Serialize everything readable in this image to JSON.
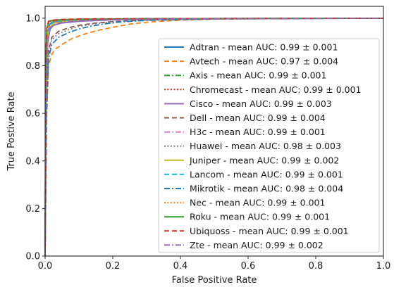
{
  "chart_data": {
    "type": "line",
    "title": "",
    "xlabel": "False Positive Rate",
    "ylabel": "True Postive Rate",
    "xlim": [
      0.0,
      1.0
    ],
    "ylim": [
      0.0,
      1.05
    ],
    "x_ticks": [
      "0.0",
      "0.2",
      "0.4",
      "0.6",
      "0.8",
      "1.0"
    ],
    "y_ticks": [
      "0.0",
      "0.2",
      "0.4",
      "0.6",
      "0.8",
      "1.0"
    ],
    "grid": false,
    "legend_position": "lower-right",
    "series": [
      {
        "name": "Adtran - mean AUC: 0.99 ± 0.001",
        "color": "#1f77b4",
        "dash": "solid",
        "x": [
          0,
          0.002,
          0.006,
          0.012,
          0.02,
          0.05,
          0.1,
          0.2,
          0.4,
          0.7,
          1.0
        ],
        "y": [
          0,
          0.55,
          0.9,
          0.97,
          0.985,
          0.99,
          0.993,
          0.996,
          0.998,
          0.999,
          1.0
        ]
      },
      {
        "name": "Avtech - mean AUC: 0.97 ± 0.004",
        "color": "#ff7f0e",
        "dash": "dashed",
        "x": [
          0,
          0.005,
          0.01,
          0.02,
          0.03,
          0.05,
          0.08,
          0.12,
          0.16,
          0.2,
          0.25,
          0.3,
          0.35,
          0.4,
          0.5,
          0.7,
          1.0
        ],
        "y": [
          0,
          0.6,
          0.8,
          0.85,
          0.87,
          0.89,
          0.915,
          0.935,
          0.95,
          0.962,
          0.975,
          0.983,
          0.988,
          0.992,
          0.996,
          0.999,
          1.0
        ]
      },
      {
        "name": "Axis - mean AUC: 0.99 ± 0.001",
        "color": "#2ca02c",
        "dash": "dashdot",
        "x": [
          0,
          0.003,
          0.008,
          0.015,
          0.03,
          0.06,
          0.12,
          0.25,
          0.5,
          1.0
        ],
        "y": [
          0,
          0.7,
          0.94,
          0.975,
          0.985,
          0.99,
          0.994,
          0.997,
          0.999,
          1.0
        ]
      },
      {
        "name": "Chromecast - mean AUC: 0.99 ± 0.001",
        "color": "#d62728",
        "dash": "dotted",
        "x": [
          0,
          0.002,
          0.005,
          0.01,
          0.02,
          0.05,
          0.1,
          0.3,
          0.6,
          1.0
        ],
        "y": [
          0,
          0.8,
          0.95,
          0.985,
          0.99,
          0.993,
          0.995,
          0.997,
          0.999,
          1.0
        ]
      },
      {
        "name": "Cisco - mean AUC: 0.99 ± 0.003",
        "color": "#9467bd",
        "dash": "solid",
        "x": [
          0,
          0.003,
          0.008,
          0.015,
          0.025,
          0.05,
          0.1,
          0.2,
          0.4,
          1.0
        ],
        "y": [
          0,
          0.65,
          0.9,
          0.955,
          0.97,
          0.98,
          0.987,
          0.993,
          0.997,
          1.0
        ]
      },
      {
        "name": "Dell - mean AUC: 0.99 ± 0.004",
        "color": "#8c564b",
        "dash": "dashed",
        "x": [
          0,
          0.004,
          0.01,
          0.02,
          0.04,
          0.07,
          0.1,
          0.15,
          0.2,
          0.3,
          0.5,
          1.0
        ],
        "y": [
          0,
          0.6,
          0.86,
          0.92,
          0.945,
          0.96,
          0.97,
          0.98,
          0.986,
          0.993,
          0.998,
          1.0
        ]
      },
      {
        "name": "H3c - mean AUC: 0.99 ± 0.001",
        "color": "#e377c2",
        "dash": "dashdot",
        "x": [
          0,
          0.003,
          0.007,
          0.015,
          0.03,
          0.06,
          0.12,
          0.3,
          0.6,
          1.0
        ],
        "y": [
          0,
          0.72,
          0.93,
          0.97,
          0.983,
          0.99,
          0.994,
          0.997,
          0.999,
          1.0
        ]
      },
      {
        "name": "Huawei - mean AUC: 0.98 ± 0.003",
        "color": "#7f7f7f",
        "dash": "dotted",
        "x": [
          0,
          0.004,
          0.01,
          0.02,
          0.04,
          0.07,
          0.1,
          0.15,
          0.2,
          0.3,
          0.5,
          1.0
        ],
        "y": [
          0,
          0.58,
          0.84,
          0.91,
          0.935,
          0.952,
          0.965,
          0.977,
          0.985,
          0.992,
          0.997,
          1.0
        ]
      },
      {
        "name": "Juniper - mean AUC: 0.99 ± 0.002",
        "color": "#bcbd22",
        "dash": "solid",
        "x": [
          0,
          0.003,
          0.007,
          0.015,
          0.03,
          0.06,
          0.12,
          0.25,
          0.5,
          1.0
        ],
        "y": [
          0,
          0.68,
          0.92,
          0.965,
          0.98,
          0.988,
          0.993,
          0.997,
          0.999,
          1.0
        ]
      },
      {
        "name": "Lancom - mean AUC: 0.99 ± 0.001",
        "color": "#17becf",
        "dash": "dashed",
        "x": [
          0,
          0.003,
          0.007,
          0.015,
          0.03,
          0.06,
          0.12,
          0.3,
          0.6,
          1.0
        ],
        "y": [
          0,
          0.75,
          0.94,
          0.975,
          0.986,
          0.991,
          0.995,
          0.998,
          0.999,
          1.0
        ]
      },
      {
        "name": "Mikrotik - mean AUC: 0.98 ± 0.004",
        "color": "#1f77b4",
        "dash": "dashdot",
        "x": [
          0,
          0.004,
          0.01,
          0.02,
          0.04,
          0.07,
          0.1,
          0.14,
          0.18,
          0.22,
          0.3,
          0.5,
          1.0
        ],
        "y": [
          0,
          0.6,
          0.83,
          0.89,
          0.92,
          0.94,
          0.955,
          0.968,
          0.977,
          0.984,
          0.991,
          0.997,
          1.0
        ]
      },
      {
        "name": "Nec - mean AUC: 0.99 ± 0.001",
        "color": "#ff7f0e",
        "dash": "dotted",
        "x": [
          0,
          0.002,
          0.006,
          0.012,
          0.025,
          0.05,
          0.1,
          0.3,
          0.6,
          1.0
        ],
        "y": [
          0,
          0.78,
          0.95,
          0.98,
          0.988,
          0.992,
          0.995,
          0.998,
          0.999,
          1.0
        ]
      },
      {
        "name": "Roku - mean AUC: 0.99 ± 0.001",
        "color": "#2ca02c",
        "dash": "solid",
        "x": [
          0,
          0.002,
          0.005,
          0.01,
          0.02,
          0.05,
          0.1,
          0.3,
          0.6,
          1.0
        ],
        "y": [
          0,
          0.8,
          0.955,
          0.985,
          0.991,
          0.994,
          0.996,
          0.998,
          0.999,
          1.0
        ]
      },
      {
        "name": "Ubiquoss - mean AUC: 0.99 ± 0.001",
        "color": "#d62728",
        "dash": "dashed",
        "x": [
          0,
          0.002,
          0.005,
          0.01,
          0.02,
          0.05,
          0.1,
          0.3,
          0.6,
          1.0
        ],
        "y": [
          0,
          0.82,
          0.96,
          0.987,
          0.992,
          0.995,
          0.997,
          0.998,
          0.999,
          1.0
        ]
      },
      {
        "name": "Zte - mean AUC: 0.99 ± 0.002",
        "color": "#9467bd",
        "dash": "dashdot",
        "x": [
          0,
          0.003,
          0.008,
          0.015,
          0.03,
          0.06,
          0.12,
          0.25,
          0.5,
          1.0
        ],
        "y": [
          0,
          0.66,
          0.9,
          0.96,
          0.975,
          0.985,
          0.991,
          0.995,
          0.998,
          1.0
        ]
      }
    ]
  }
}
